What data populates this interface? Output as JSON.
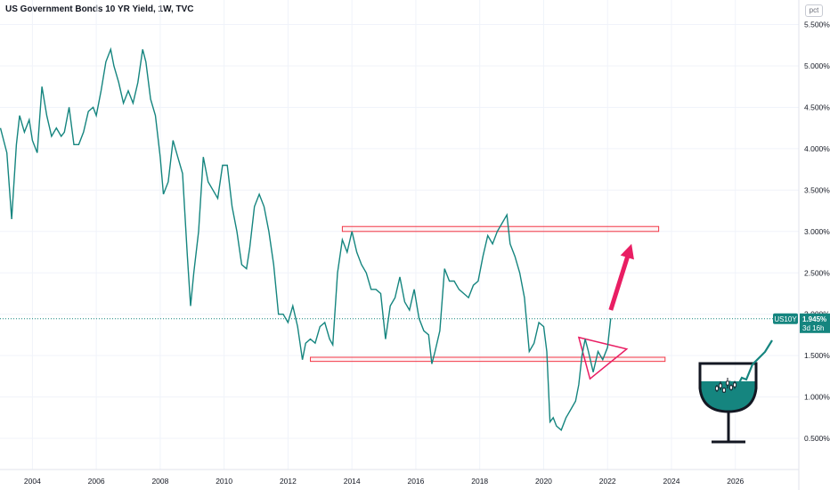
{
  "chart_data": {
    "type": "line",
    "title": "US Government Bonds 10 YR Yield, 1W, TVC",
    "scale_mode": "pct",
    "yticks": [
      "5.500%",
      "5.000%",
      "4.500%",
      "4.000%",
      "3.500%",
      "3.000%",
      "2.500%",
      "2.000%",
      "1.500%",
      "1.000%",
      "0.500%"
    ],
    "ytick_values": [
      5.5,
      5.0,
      4.5,
      4.0,
      3.5,
      3.0,
      2.5,
      2.0,
      1.5,
      1.0,
      0.5
    ],
    "xticks": [
      "2004",
      "2006",
      "2008",
      "2010",
      "2012",
      "2014",
      "2016",
      "2018",
      "2020",
      "2022",
      "2024",
      "2026"
    ],
    "xtick_values": [
      2004,
      2006,
      2008,
      2010,
      2012,
      2014,
      2016,
      2018,
      2020,
      2022,
      2024,
      2026
    ],
    "xlim": [
      2003.0,
      2028.0
    ],
    "ylim": [
      0.2,
      5.85
    ],
    "series": [
      {
        "symbol": "US10Y",
        "color": "#15857f",
        "x": [
          2003.0,
          2003.2,
          2003.35,
          2003.5,
          2003.6,
          2003.75,
          2003.9,
          2004.0,
          2004.15,
          2004.3,
          2004.45,
          2004.6,
          2004.75,
          2004.9,
          2005.0,
          2005.15,
          2005.3,
          2005.45,
          2005.6,
          2005.75,
          2005.9,
          2006.0,
          2006.15,
          2006.3,
          2006.45,
          2006.55,
          2006.7,
          2006.85,
          2007.0,
          2007.15,
          2007.3,
          2007.45,
          2007.55,
          2007.7,
          2007.85,
          2008.0,
          2008.1,
          2008.25,
          2008.4,
          2008.55,
          2008.7,
          2008.85,
          2008.95,
          2009.05,
          2009.2,
          2009.35,
          2009.5,
          2009.65,
          2009.8,
          2009.95,
          2010.1,
          2010.25,
          2010.4,
          2010.55,
          2010.7,
          2010.8,
          2010.95,
          2011.1,
          2011.25,
          2011.4,
          2011.55,
          2011.7,
          2011.85,
          2012.0,
          2012.15,
          2012.3,
          2012.45,
          2012.55,
          2012.7,
          2012.85,
          2013.0,
          2013.15,
          2013.3,
          2013.4,
          2013.55,
          2013.7,
          2013.85,
          2014.0,
          2014.15,
          2014.3,
          2014.45,
          2014.6,
          2014.75,
          2014.9,
          2015.05,
          2015.2,
          2015.35,
          2015.5,
          2015.65,
          2015.8,
          2015.95,
          2016.1,
          2016.25,
          2016.4,
          2016.5,
          2016.6,
          2016.75,
          2016.9,
          2017.05,
          2017.2,
          2017.35,
          2017.5,
          2017.65,
          2017.8,
          2017.95,
          2018.1,
          2018.25,
          2018.4,
          2018.55,
          2018.7,
          2018.85,
          2018.95,
          2019.1,
          2019.25,
          2019.4,
          2019.55,
          2019.7,
          2019.85,
          2020.0,
          2020.1,
          2020.2,
          2020.3,
          2020.4,
          2020.55,
          2020.7,
          2020.85,
          2021.0,
          2021.1,
          2021.2,
          2021.3,
          2021.4,
          2021.55,
          2021.7,
          2021.85,
          2022.0,
          2022.1
        ],
        "y": [
          4.25,
          3.95,
          3.15,
          4.05,
          4.4,
          4.2,
          4.35,
          4.1,
          3.95,
          4.75,
          4.4,
          4.15,
          4.25,
          4.15,
          4.2,
          4.5,
          4.05,
          4.05,
          4.2,
          4.45,
          4.5,
          4.4,
          4.7,
          5.05,
          5.2,
          5.0,
          4.8,
          4.55,
          4.7,
          4.55,
          4.8,
          5.2,
          5.05,
          4.6,
          4.4,
          3.9,
          3.45,
          3.6,
          4.1,
          3.9,
          3.7,
          2.7,
          2.1,
          2.5,
          3.0,
          3.9,
          3.6,
          3.5,
          3.4,
          3.8,
          3.8,
          3.3,
          3.0,
          2.6,
          2.55,
          2.8,
          3.3,
          3.45,
          3.3,
          3.0,
          2.6,
          2.0,
          2.0,
          1.9,
          2.1,
          1.85,
          1.45,
          1.65,
          1.7,
          1.65,
          1.85,
          1.9,
          1.7,
          1.63,
          2.5,
          2.9,
          2.75,
          3.0,
          2.75,
          2.6,
          2.5,
          2.3,
          2.3,
          2.25,
          1.7,
          2.1,
          2.2,
          2.45,
          2.15,
          2.05,
          2.3,
          1.95,
          1.8,
          1.75,
          1.4,
          1.55,
          1.8,
          2.55,
          2.4,
          2.4,
          2.3,
          2.25,
          2.2,
          2.35,
          2.4,
          2.7,
          2.95,
          2.85,
          3.0,
          3.1,
          3.2,
          2.85,
          2.7,
          2.5,
          2.2,
          1.55,
          1.65,
          1.9,
          1.85,
          1.55,
          0.7,
          0.75,
          0.65,
          0.6,
          0.75,
          0.85,
          0.95,
          1.15,
          1.5,
          1.7,
          1.55,
          1.3,
          1.55,
          1.45,
          1.6,
          1.95
        ]
      }
    ],
    "last_value_label": "1.945%",
    "last_value": 1.945,
    "countdown_label": "3d 16h",
    "annotations": {
      "resistance_zone": {
        "x": [
          2013.7,
          2023.6
        ],
        "y": [
          3.0,
          3.06
        ]
      },
      "support_zone": {
        "x": [
          2012.7,
          2023.8
        ],
        "y": [
          1.43,
          1.48
        ]
      },
      "triangle": {
        "x": [
          2021.1,
          2021.45,
          2022.6
        ],
        "y": [
          1.72,
          1.22,
          1.58
        ]
      },
      "arrow": {
        "from": [
          2022.1,
          2.05
        ],
        "to": [
          2022.75,
          2.85
        ]
      },
      "arrow_color": "#e91e63",
      "zone_color": "#f23645"
    }
  }
}
